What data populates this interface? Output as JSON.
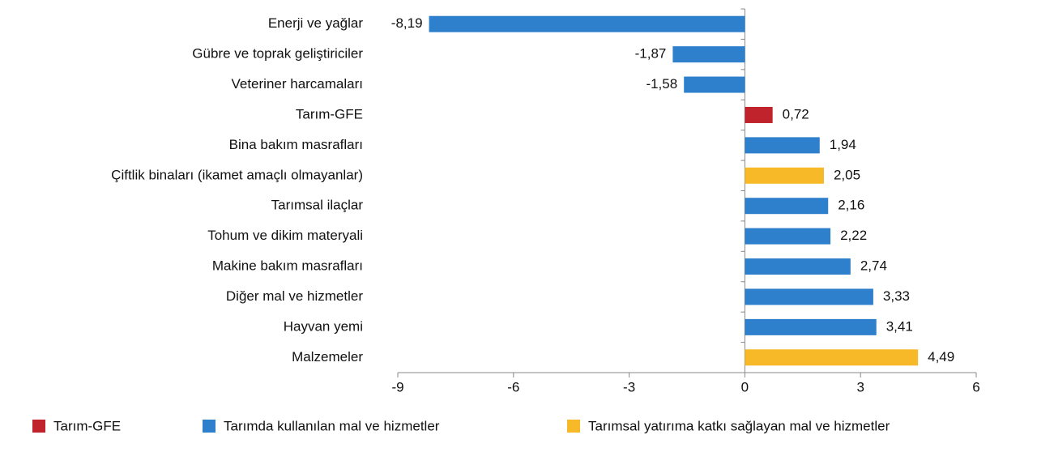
{
  "chart_data": {
    "type": "bar",
    "orientation": "horizontal",
    "categories": [
      "Enerji ve yağlar",
      "Gübre ve toprak geliştiriciler",
      "Veteriner harcamaları",
      "Tarım-GFE",
      "Bina bakım masrafları",
      "Çiftlik binaları (ikamet amaçlı olmayanlar)",
      "Tarımsal ilaçlar",
      "Tohum ve dikim materyali",
      "Makine bakım masrafları",
      "Diğer mal ve hizmetler",
      "Hayvan yemi",
      "Malzemeler"
    ],
    "series": [
      {
        "name": "Tarım-GFE",
        "color": "#c0232c",
        "values": [
          null,
          null,
          null,
          0.72,
          null,
          null,
          null,
          null,
          null,
          null,
          null,
          null
        ],
        "value_labels": [
          null,
          null,
          null,
          "0,72",
          null,
          null,
          null,
          null,
          null,
          null,
          null,
          null
        ]
      },
      {
        "name": "Tarımda kullanılan mal ve hizmetler",
        "color": "#2e7fcc",
        "values": [
          -8.19,
          -1.87,
          -1.58,
          null,
          1.94,
          null,
          2.16,
          2.22,
          2.74,
          3.33,
          3.41,
          null
        ],
        "value_labels": [
          "-8,19",
          "-1,87",
          "-1,58",
          null,
          "1,94",
          null,
          "2,16",
          "2,22",
          "2,74",
          "3,33",
          "3,41",
          null
        ]
      },
      {
        "name": "Tarımsal yatırıma katkı sağlayan mal ve hizmetler",
        "color": "#f7b928",
        "values": [
          null,
          null,
          null,
          null,
          null,
          2.05,
          null,
          null,
          null,
          null,
          null,
          4.49
        ],
        "value_labels": [
          null,
          null,
          null,
          null,
          null,
          "2,05",
          null,
          null,
          null,
          null,
          null,
          "4,49"
        ]
      }
    ],
    "xlim": [
      -9,
      6
    ],
    "xticks": [
      -9,
      -6,
      -3,
      0,
      3,
      6
    ],
    "legend": "bottom"
  }
}
